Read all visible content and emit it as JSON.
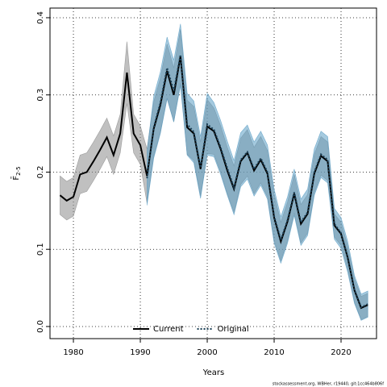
{
  "chart_data": {
    "type": "line",
    "xlabel": "Years",
    "ylabel": "F̄",
    "ylabel_subscript": "2-5",
    "footer": "stockassessment.org, WBHer, r19440, git:1cc464b806f",
    "x": [
      1978,
      1979,
      1980,
      1981,
      1982,
      1983,
      1984,
      1985,
      1986,
      1987,
      1988,
      1989,
      1990,
      1991,
      1992,
      1993,
      1994,
      1995,
      1996,
      1997,
      1998,
      1999,
      2000,
      2001,
      2002,
      2003,
      2004,
      2005,
      2006,
      2007,
      2008,
      2009,
      2010,
      2011,
      2012,
      2013,
      2014,
      2015,
      2016,
      2017,
      2018,
      2019,
      2020,
      2021,
      2022,
      2023,
      2024
    ],
    "series": [
      {
        "name": "Current",
        "color": "#000000",
        "band_color": "#8c8c8c",
        "dash": "solid",
        "values": [
          0.17,
          0.163,
          0.168,
          0.197,
          0.2,
          0.214,
          0.229,
          0.245,
          0.222,
          0.25,
          0.329,
          0.25,
          0.235,
          0.195,
          0.256,
          0.287,
          0.331,
          0.3,
          0.35,
          0.258,
          0.25,
          0.204,
          0.259,
          0.253,
          0.23,
          0.202,
          0.178,
          0.214,
          0.225,
          0.202,
          0.216,
          0.198,
          0.141,
          0.11,
          0.136,
          0.172,
          0.133,
          0.146,
          0.198,
          0.221,
          0.214,
          0.131,
          0.12,
          0.089,
          0.047,
          0.024,
          0.028
        ],
        "lower": [
          0.145,
          0.138,
          0.143,
          0.172,
          0.175,
          0.189,
          0.204,
          0.22,
          0.197,
          0.225,
          0.289,
          0.225,
          0.21,
          0.16,
          0.221,
          0.252,
          0.296,
          0.265,
          0.315,
          0.223,
          0.215,
          0.169,
          0.224,
          0.223,
          0.2,
          0.172,
          0.148,
          0.184,
          0.195,
          0.172,
          0.186,
          0.168,
          0.111,
          0.085,
          0.111,
          0.147,
          0.108,
          0.121,
          0.173,
          0.196,
          0.189,
          0.116,
          0.105,
          0.074,
          0.032,
          0.009,
          0.013
        ],
        "upper": [
          0.195,
          0.188,
          0.193,
          0.222,
          0.225,
          0.239,
          0.254,
          0.27,
          0.247,
          0.275,
          0.369,
          0.275,
          0.26,
          0.23,
          0.291,
          0.322,
          0.366,
          0.335,
          0.385,
          0.293,
          0.285,
          0.239,
          0.294,
          0.283,
          0.26,
          0.232,
          0.208,
          0.244,
          0.255,
          0.232,
          0.246,
          0.228,
          0.171,
          0.135,
          0.161,
          0.197,
          0.158,
          0.171,
          0.223,
          0.246,
          0.239,
          0.146,
          0.135,
          0.104,
          0.062,
          0.039,
          0.043
        ]
      },
      {
        "name": "Original",
        "color": "#1b3f55",
        "band_color": "#5b9ec4",
        "dash": "dotted",
        "values": [
          null,
          null,
          null,
          null,
          null,
          null,
          null,
          null,
          null,
          null,
          null,
          null,
          null,
          0.192,
          0.258,
          0.29,
          0.335,
          0.305,
          0.352,
          0.262,
          0.252,
          0.206,
          0.262,
          0.255,
          0.232,
          0.205,
          0.18,
          0.216,
          0.226,
          0.204,
          0.218,
          0.2,
          0.143,
          0.112,
          0.138,
          0.174,
          0.135,
          0.148,
          0.2,
          0.223,
          0.216,
          0.133,
          0.121,
          0.09,
          0.048,
          0.025,
          0.029
        ],
        "lower": [
          null,
          null,
          null,
          null,
          null,
          null,
          null,
          null,
          null,
          null,
          null,
          null,
          null,
          0.157,
          0.218,
          0.25,
          0.295,
          0.265,
          0.312,
          0.222,
          0.212,
          0.166,
          0.222,
          0.22,
          0.197,
          0.17,
          0.145,
          0.181,
          0.191,
          0.169,
          0.183,
          0.165,
          0.108,
          0.082,
          0.108,
          0.144,
          0.105,
          0.118,
          0.17,
          0.193,
          0.186,
          0.113,
          0.101,
          0.07,
          0.03,
          0.008,
          0.012
        ],
        "upper": [
          null,
          null,
          null,
          null,
          null,
          null,
          null,
          null,
          null,
          null,
          null,
          null,
          null,
          0.227,
          0.298,
          0.33,
          0.375,
          0.345,
          0.392,
          0.302,
          0.292,
          0.246,
          0.302,
          0.29,
          0.267,
          0.24,
          0.215,
          0.251,
          0.261,
          0.239,
          0.253,
          0.235,
          0.178,
          0.142,
          0.168,
          0.204,
          0.165,
          0.178,
          0.23,
          0.253,
          0.246,
          0.153,
          0.141,
          0.11,
          0.066,
          0.042,
          0.046
        ]
      }
    ],
    "xlim": [
      1976.5,
      2025.3
    ],
    "ylim": [
      -0.0157,
      0.4125
    ],
    "xticks": [
      1980,
      1990,
      2000,
      2010,
      2020
    ],
    "yticks": [
      {
        "value": 0,
        "label": "0.0"
      },
      0.1,
      0.2,
      0.3,
      0.4
    ],
    "grid": true,
    "legend": "bottom"
  }
}
